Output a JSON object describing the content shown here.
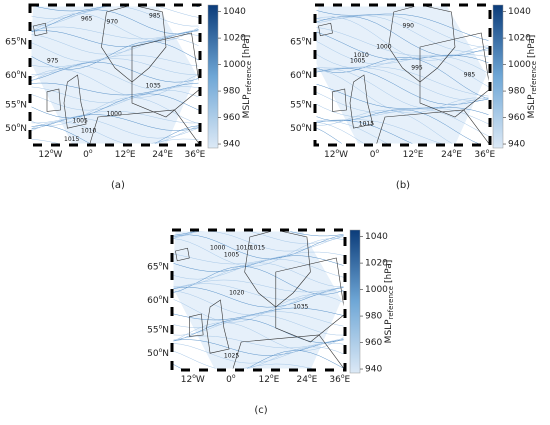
{
  "panels": [
    {
      "caption": "(a)",
      "lat_labels": [
        {
          "number": "65",
          "sup": "o",
          "dir": "N"
        },
        {
          "number": "60",
          "sup": "o",
          "dir": "N"
        },
        {
          "number": "55",
          "sup": "o",
          "dir": "N"
        },
        {
          "number": "50",
          "sup": "o",
          "dir": "N"
        }
      ],
      "lon_labels": [
        {
          "number": "12",
          "sup": "o",
          "dir": "W"
        },
        {
          "number": "0",
          "sup": "o",
          "dir": ""
        },
        {
          "number": "12",
          "sup": "o",
          "dir": "E"
        },
        {
          "number": "24",
          "sup": "o",
          "dir": "E"
        },
        {
          "number": "36",
          "sup": "o",
          "dir": "E"
        }
      ],
      "colorbar": {
        "label": "MSLP",
        "subscript": "reference",
        "unit": "[hPa]",
        "lim": [
          937,
          1045
        ],
        "ticks": [
          940,
          960,
          980,
          1000,
          1020,
          1040
        ]
      },
      "contour_labels": [
        "965",
        "970",
        "975",
        "985",
        "1000",
        "1005",
        "1010",
        "1015",
        "1035"
      ]
    },
    {
      "caption": "(b)",
      "lat_labels": [
        {
          "number": "65",
          "sup": "o",
          "dir": "N"
        },
        {
          "number": "60",
          "sup": "o",
          "dir": "N"
        },
        {
          "number": "55",
          "sup": "o",
          "dir": "N"
        },
        {
          "number": "50",
          "sup": "o",
          "dir": "N"
        }
      ],
      "lon_labels": [
        {
          "number": "12",
          "sup": "o",
          "dir": "W"
        },
        {
          "number": "0",
          "sup": "o",
          "dir": ""
        },
        {
          "number": "12",
          "sup": "o",
          "dir": "E"
        },
        {
          "number": "24",
          "sup": "o",
          "dir": "E"
        },
        {
          "number": "36",
          "sup": "o",
          "dir": "E"
        }
      ],
      "colorbar": {
        "label": "MSLP",
        "subscript": "reference",
        "unit": "[hPa]",
        "lim": [
          937,
          1045
        ],
        "ticks": [
          940,
          960,
          980,
          1000,
          1020,
          1040
        ]
      },
      "contour_labels": [
        "990",
        "1000",
        "1005",
        "1010",
        "1015",
        "995",
        "985"
      ]
    },
    {
      "caption": "(c)",
      "lat_labels": [
        {
          "number": "65",
          "sup": "o",
          "dir": "N"
        },
        {
          "number": "60",
          "sup": "o",
          "dir": "N"
        },
        {
          "number": "55",
          "sup": "o",
          "dir": "N"
        },
        {
          "number": "50",
          "sup": "o",
          "dir": "N"
        }
      ],
      "lon_labels": [
        {
          "number": "12",
          "sup": "o",
          "dir": "W"
        },
        {
          "number": "0",
          "sup": "o",
          "dir": ""
        },
        {
          "number": "12",
          "sup": "o",
          "dir": "E"
        },
        {
          "number": "24",
          "sup": "o",
          "dir": "E"
        },
        {
          "number": "36",
          "sup": "o",
          "dir": "E"
        }
      ],
      "colorbar": {
        "label": "MSLP",
        "subscript": "reference",
        "unit": "[hPa]",
        "lim": [
          937,
          1045
        ],
        "ticks": [
          940,
          960,
          980,
          1000,
          1020,
          1040
        ]
      },
      "contour_labels": [
        "1000",
        "1005",
        "1010",
        "1015",
        "1020",
        "1025",
        "1035"
      ]
    }
  ]
}
